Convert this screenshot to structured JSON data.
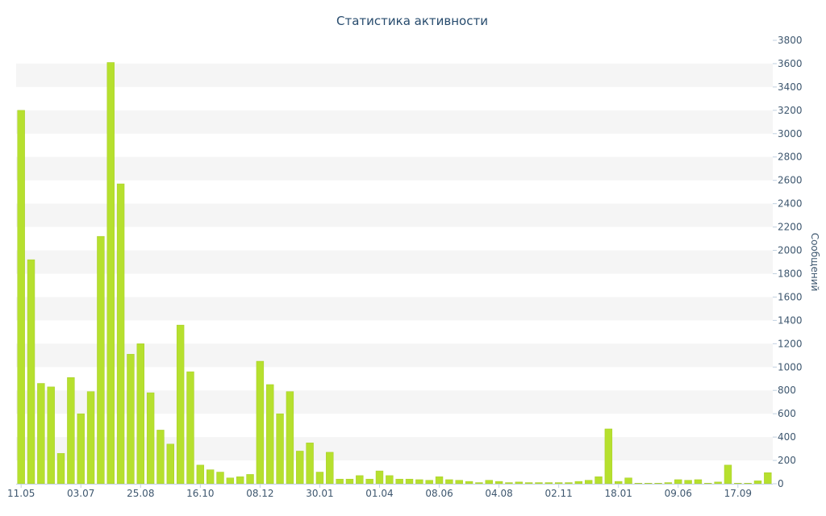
{
  "chart_data": {
    "type": "bar",
    "title": "Статистика активности",
    "xlabel": "",
    "ylabel": "Сообщений",
    "ylim": [
      0,
      3800
    ],
    "y_ticks": [
      0,
      200,
      400,
      600,
      800,
      1000,
      1200,
      1400,
      1600,
      1800,
      2000,
      2200,
      2400,
      2600,
      2800,
      3000,
      3200,
      3400,
      3600,
      3800
    ],
    "y_axis_side": "right",
    "grid": "alternating horizontal bands",
    "x_tick_labels": [
      "11.05",
      "03.07",
      "25.08",
      "16.10",
      "08.12",
      "30.01",
      "01.04",
      "08.06",
      "04.08",
      "02.11",
      "18.01",
      "09.06",
      "17.09"
    ],
    "x_tick_label_positions": [
      0,
      6,
      12,
      18,
      24,
      30,
      36,
      42,
      48,
      54,
      60,
      66,
      72
    ],
    "values": [
      3200,
      1920,
      860,
      830,
      260,
      910,
      600,
      790,
      2120,
      3610,
      2570,
      1110,
      1200,
      780,
      460,
      340,
      1360,
      960,
      160,
      120,
      100,
      50,
      60,
      80,
      1050,
      850,
      600,
      790,
      280,
      350,
      100,
      270,
      40,
      40,
      70,
      40,
      110,
      70,
      40,
      40,
      35,
      30,
      60,
      35,
      30,
      20,
      10,
      30,
      20,
      10,
      15,
      10,
      10,
      10,
      10,
      10,
      20,
      30,
      60,
      470,
      20,
      50,
      5,
      5,
      5,
      10,
      35,
      30,
      35,
      5,
      15,
      160,
      5,
      5,
      25,
      95
    ]
  },
  "colors": {
    "bar": "#b6e02e",
    "bar_edge": "#a6cc27",
    "band": "#f5f5f5",
    "axis": "#c0d0e0",
    "text": "#3e576f",
    "title": "#274b6d"
  }
}
